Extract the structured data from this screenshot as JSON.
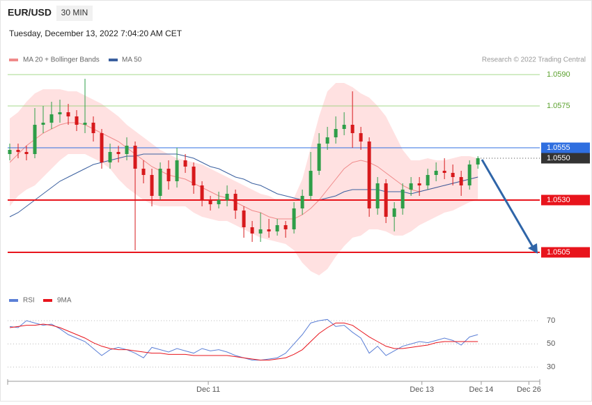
{
  "chart_data": [
    {
      "type": "candlestick",
      "title": "EUR/USD",
      "timeframe": "30 MIN",
      "subtitle": "Tuesday, December 13, 2022 7:04:20 AM CET",
      "source": "Research © 2022 Trading Central",
      "xlim": [
        -0.25,
        63.4
      ],
      "xticks": [
        {
          "value": 23.75,
          "label": "Dec 11"
        },
        {
          "value": 49.3,
          "label": "Dec 13"
        },
        {
          "value": 56.4,
          "label": "Dec 14"
        },
        {
          "value": 62.1,
          "label": "Dec 26"
        }
      ],
      "ylim": [
        1.049,
        1.06
      ],
      "yticks": [
        {
          "value": 1.059,
          "label": "1.0590"
        },
        {
          "value": 1.0575,
          "label": "1.0575"
        },
        {
          "value": 1.0555,
          "label": "1.0555"
        },
        {
          "value": 1.055,
          "label": "1.0550"
        },
        {
          "value": 1.053,
          "label": "1.0530"
        },
        {
          "value": 1.0505,
          "label": "1.0505"
        }
      ],
      "level_colors": [
        "#8fd16e",
        "#8fd16e",
        "#2f6fe0",
        "#333333",
        "#e8141c",
        "#e8141c"
      ],
      "level_boxed": [
        false,
        false,
        true,
        true,
        true,
        true
      ],
      "level_dashed": [
        false,
        false,
        false,
        true,
        false,
        false
      ],
      "up_color": "#2e9e48",
      "down_color": "#d7191c",
      "open": [
        1.0552,
        1.0554,
        1.0553,
        1.0552,
        1.0566,
        1.0567,
        1.0571,
        1.0572,
        1.057,
        1.0566,
        1.0567,
        1.0562,
        1.0548,
        1.0553,
        1.0552,
        1.0556,
        1.0545,
        1.0542,
        1.0532,
        1.0545,
        1.0539,
        1.0549,
        1.0546,
        1.0537,
        1.053,
        1.0528,
        1.053,
        1.0533,
        1.0525,
        1.0517,
        1.0514,
        1.0516,
        1.0515,
        1.0518,
        1.0516,
        1.0526,
        1.0532,
        1.0544,
        1.0557,
        1.056,
        1.0564,
        1.0566,
        1.0562,
        1.0558,
        1.0526,
        1.0538,
        1.0522,
        1.0526,
        1.0535,
        1.0538,
        1.0537,
        1.0542,
        1.0544,
        1.0543,
        1.0541,
        1.0537,
        1.0547
      ],
      "high": [
        1.0557,
        1.0557,
        1.0556,
        1.0574,
        1.0575,
        1.0577,
        1.0578,
        1.0576,
        1.0573,
        1.0588,
        1.057,
        1.0564,
        1.0557,
        1.0556,
        1.056,
        1.0558,
        1.0549,
        1.0545,
        1.0548,
        1.0549,
        1.0555,
        1.0552,
        1.0548,
        1.0539,
        1.0532,
        1.0534,
        1.0537,
        1.0535,
        1.0527,
        1.052,
        1.0524,
        1.0521,
        1.0521,
        1.052,
        1.0529,
        1.0535,
        1.0553,
        1.0562,
        1.0565,
        1.057,
        1.0572,
        1.0582,
        1.0565,
        1.056,
        1.0541,
        1.054,
        1.0529,
        1.0538,
        1.0541,
        1.0541,
        1.0545,
        1.0548,
        1.055,
        1.0547,
        1.0544,
        1.0549,
        1.0551
      ],
      "low": [
        1.0549,
        1.055,
        1.0549,
        1.055,
        1.0562,
        1.0564,
        1.0567,
        1.0566,
        1.0563,
        1.0562,
        1.0558,
        1.0545,
        1.0545,
        1.0548,
        1.0549,
        1.0506,
        1.0538,
        1.0527,
        1.053,
        1.0535,
        1.0536,
        1.0543,
        1.0533,
        1.0527,
        1.0525,
        1.0526,
        1.0527,
        1.0521,
        1.0512,
        1.051,
        1.051,
        1.0512,
        1.0513,
        1.0512,
        1.0514,
        1.0523,
        1.053,
        1.0542,
        1.0554,
        1.0557,
        1.0561,
        1.0555,
        1.0554,
        1.0522,
        1.0523,
        1.0519,
        1.0515,
        1.0523,
        1.0532,
        1.0532,
        1.0535,
        1.0539,
        1.054,
        1.0537,
        1.0532,
        1.0535,
        1.0545
      ],
      "close": [
        1.0554,
        1.0553,
        1.0552,
        1.0566,
        1.0567,
        1.0571,
        1.0572,
        1.057,
        1.0566,
        1.0567,
        1.0562,
        1.0548,
        1.0553,
        1.0552,
        1.0556,
        1.0545,
        1.0542,
        1.0532,
        1.0545,
        1.0539,
        1.0549,
        1.0546,
        1.0537,
        1.053,
        1.0528,
        1.053,
        1.0533,
        1.0525,
        1.0517,
        1.0514,
        1.0516,
        1.0515,
        1.0518,
        1.0516,
        1.0526,
        1.0532,
        1.0544,
        1.0557,
        1.056,
        1.0564,
        1.0566,
        1.0562,
        1.0558,
        1.0526,
        1.0538,
        1.0522,
        1.0526,
        1.0535,
        1.0538,
        1.0537,
        1.0542,
        1.0544,
        1.0543,
        1.0541,
        1.0537,
        1.0547,
        1.055
      ],
      "series": [
        {
          "name": "MA 20 + Bollinger Bands",
          "color": "#f08a8a",
          "values": [
            1.0548,
            1.0552,
            1.0556,
            1.0559,
            1.0562,
            1.0564,
            1.0566,
            1.0567,
            1.0567,
            1.0566,
            1.0564,
            1.0562,
            1.056,
            1.0558,
            1.0555,
            1.0552,
            1.0549,
            1.0546,
            1.0544,
            1.0542,
            1.0541,
            1.054,
            1.0538,
            1.0536,
            1.0534,
            1.0532,
            1.0531,
            1.0529,
            1.0527,
            1.0525,
            1.0524,
            1.0522,
            1.0521,
            1.0521,
            1.0521,
            1.0523,
            1.0526,
            1.053,
            1.0535,
            1.054,
            1.0545,
            1.0548,
            1.0549,
            1.0548,
            1.0546,
            1.0543,
            1.054,
            1.0537,
            1.0535,
            1.0534,
            1.0535,
            1.0536,
            1.0537,
            1.0538,
            1.0539,
            1.054,
            1.0541
          ]
        },
        {
          "name": "MA 50",
          "color": "#3a5f9f",
          "values": [
            1.0522,
            1.0524,
            1.0527,
            1.053,
            1.0533,
            1.0536,
            1.0539,
            1.0541,
            1.0543,
            1.0545,
            1.0547,
            1.0548,
            1.0549,
            1.055,
            1.0551,
            1.0551,
            1.0552,
            1.0552,
            1.0552,
            1.0552,
            1.0552,
            1.0551,
            1.055,
            1.0548,
            1.0546,
            1.0545,
            1.0543,
            1.0541,
            1.054,
            1.0538,
            1.0537,
            1.0535,
            1.0533,
            1.0532,
            1.0531,
            1.053,
            1.053,
            1.053,
            1.0531,
            1.0532,
            1.0534,
            1.0535,
            1.0535,
            1.0535,
            1.0535,
            1.0534,
            1.0534,
            1.0534,
            1.0533,
            1.0534,
            1.0535,
            1.0536,
            1.0537,
            1.0538,
            1.0539,
            1.054,
            1.0541
          ]
        }
      ],
      "bands": {
        "color": "#ffdcdc",
        "upper": [
          1.0569,
          1.0572,
          1.0577,
          1.0581,
          1.0583,
          1.0583,
          1.0583,
          1.0582,
          1.0582,
          1.058,
          1.0578,
          1.0576,
          1.0573,
          1.057,
          1.0566,
          1.0563,
          1.056,
          1.0557,
          1.0554,
          1.0552,
          1.055,
          1.0549,
          1.0548,
          1.0547,
          1.0545,
          1.0543,
          1.0541,
          1.0539,
          1.0537,
          1.0535,
          1.0533,
          1.0532,
          1.053,
          1.053,
          1.0531,
          1.054,
          1.0555,
          1.057,
          1.0582,
          1.0586,
          1.0586,
          1.0584,
          1.0581,
          1.0579,
          1.0575,
          1.057,
          1.0562,
          1.0554,
          1.0549,
          1.0549,
          1.055,
          1.0549,
          1.0549,
          1.055,
          1.0551,
          1.0551,
          1.055
        ],
        "lower": [
          1.0527,
          1.0532,
          1.0535,
          1.0537,
          1.0541,
          1.0545,
          1.0549,
          1.0552,
          1.0552,
          1.0552,
          1.055,
          1.0548,
          1.0545,
          1.054,
          1.0536,
          1.0533,
          1.053,
          1.0528,
          1.0527,
          1.0527,
          1.0527,
          1.0527,
          1.0524,
          1.0522,
          1.0521,
          1.052,
          1.052,
          1.0518,
          1.0516,
          1.0514,
          1.0512,
          1.0511,
          1.051,
          1.0509,
          1.0506,
          1.05,
          1.0496,
          1.0494,
          1.0497,
          1.0503,
          1.0508,
          1.0512,
          1.0513,
          1.0516,
          1.0516,
          1.0515,
          1.0513,
          1.0513,
          1.0515,
          1.0518,
          1.052,
          1.0522,
          1.0524,
          1.0525,
          1.0527,
          1.0529,
          1.053
        ]
      }
    },
    {
      "type": "line",
      "xlim": [
        -0.25,
        63.4
      ],
      "ylim": [
        22,
        79
      ],
      "yticks": [
        30,
        50,
        70
      ],
      "grid": true,
      "series": [
        {
          "name": "RSI",
          "color": "#5b7fd6",
          "values": [
            65,
            64,
            70,
            68,
            66,
            67,
            63,
            58,
            55,
            52,
            46,
            40,
            45,
            47,
            45,
            42,
            38,
            47,
            45,
            43,
            46,
            44,
            42,
            46,
            44,
            45,
            43,
            40,
            38,
            36,
            36,
            37,
            38,
            42,
            50,
            58,
            68,
            70,
            71,
            65,
            66,
            60,
            55,
            42,
            48,
            40,
            44,
            48,
            50,
            52,
            51,
            53,
            55,
            53,
            49,
            56,
            58
          ]
        },
        {
          "name": "9MA",
          "color": "#e8141c",
          "values": [
            64,
            65,
            66,
            66,
            67,
            66,
            64,
            61,
            58,
            55,
            51,
            48,
            46,
            45,
            45,
            44,
            43,
            42,
            42,
            41,
            41,
            41,
            40,
            40,
            40,
            40,
            40,
            39,
            38,
            37,
            36,
            36,
            37,
            38,
            41,
            45,
            52,
            59,
            64,
            68,
            68,
            66,
            61,
            56,
            52,
            48,
            46,
            46,
            47,
            48,
            49,
            51,
            52,
            52,
            52,
            52,
            52
          ]
        }
      ]
    }
  ]
}
